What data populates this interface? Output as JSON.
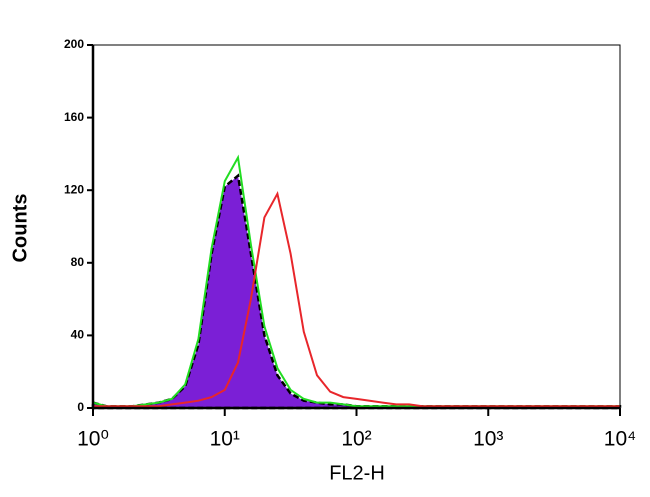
{
  "chart_data": {
    "type": "histogram-overlay",
    "x_label": "FL2-H",
    "y_label": "Counts",
    "xscale": "log",
    "xlim": [
      1,
      10000
    ],
    "ylim": [
      0,
      200
    ],
    "xticks": [
      {
        "value": 1,
        "label": "10⁰"
      },
      {
        "value": 10,
        "label": "10¹"
      },
      {
        "value": 100,
        "label": "10²"
      },
      {
        "value": 1000,
        "label": "10³"
      },
      {
        "value": 10000,
        "label": "10⁴"
      }
    ],
    "yticks": [
      0,
      40,
      80,
      120,
      160,
      200
    ],
    "x": [
      1,
      1.26,
      1.58,
      2,
      2.51,
      3.16,
      3.98,
      5.01,
      6.31,
      7.94,
      10,
      12.6,
      15.8,
      20,
      25.1,
      31.6,
      39.8,
      50.1,
      63.1,
      79.4,
      100,
      126,
      158,
      200,
      251,
      316,
      398,
      501,
      631,
      794,
      1000,
      1260,
      1580,
      2000,
      2510,
      3160,
      3980,
      5010,
      6310,
      7940,
      10000
    ],
    "series": [
      {
        "color": "#7b1fd6",
        "fill": true,
        "values": [
          3,
          1,
          1,
          1,
          2,
          3,
          5,
          12,
          35,
          85,
          122,
          128,
          85,
          40,
          18,
          8,
          4,
          3,
          2,
          2,
          1,
          1,
          1,
          1,
          1,
          1,
          1,
          1,
          1,
          1,
          1,
          1,
          1,
          1,
          1,
          1,
          1,
          1,
          1,
          1,
          1
        ]
      },
      {
        "color": "#22dd22",
        "fill": false,
        "values": [
          3,
          1,
          1,
          1,
          2,
          3,
          5,
          13,
          38,
          88,
          125,
          138,
          90,
          45,
          22,
          10,
          5,
          3,
          3,
          2,
          1,
          1,
          1,
          1,
          1,
          1,
          1,
          1,
          1,
          1,
          1,
          1,
          1,
          1,
          1,
          1,
          1,
          1,
          1,
          1,
          1
        ]
      },
      {
        "color": "#e8262b",
        "fill": false,
        "values": [
          1,
          1,
          1,
          1,
          1,
          1,
          2,
          3,
          4,
          6,
          10,
          25,
          60,
          105,
          118,
          85,
          42,
          18,
          9,
          6,
          5,
          4,
          3,
          2,
          2,
          1,
          1,
          1,
          1,
          1,
          1,
          1,
          1,
          1,
          1,
          1,
          1,
          1,
          1,
          1,
          1
        ]
      }
    ]
  }
}
